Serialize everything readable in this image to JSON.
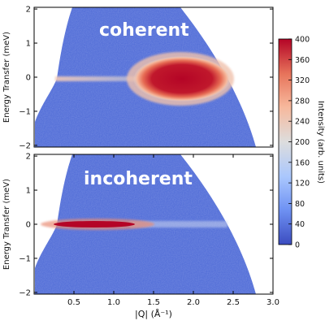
{
  "chart_data": [
    {
      "type": "heatmap",
      "panel_label": "coherent",
      "xlim": [
        0.0,
        3.0
      ],
      "ylim": [
        -2.05,
        2.05
      ],
      "ylabel": "Energy Transfer (meV)",
      "yticks": [
        "−2",
        "−1",
        "0",
        "1",
        "2"
      ],
      "xticks": [],
      "coverage_Q_range_at_E0": [
        0.32,
        2.5
      ],
      "background_intensity": 40,
      "features": [
        {
          "kind": "elastic line",
          "E": 0.0,
          "Q_range": [
            0.35,
            2.5
          ],
          "intensity": 260
        },
        {
          "kind": "quasielastic lobe",
          "Q_center": 1.9,
          "Q_width": 0.4,
          "E_halfwidth": 0.45,
          "peak_intensity": 400
        }
      ]
    },
    {
      "type": "heatmap",
      "panel_label": "incoherent",
      "xlim": [
        0.0,
        3.0
      ],
      "ylim": [
        -2.05,
        2.05
      ],
      "ylabel": "Energy Transfer (meV)",
      "xlabel": "|Q| (Å⁻¹)",
      "xticks": [
        "0.5",
        "1.0",
        "1.5",
        "2.0",
        "2.5",
        "3.0"
      ],
      "yticks": [
        "−2",
        "−1",
        "0",
        "1",
        "2"
      ],
      "coverage_Q_range_at_E0": [
        0.32,
        2.5
      ],
      "background_intensity": 40,
      "features": [
        {
          "kind": "elastic line",
          "E": 0.0,
          "Q_range": [
            0.35,
            1.45
          ],
          "peak_Q": 0.9,
          "E_halfwidth": 0.08,
          "peak_intensity": 400
        }
      ]
    }
  ],
  "colorbar": {
    "label": "Intensity (arb. units)",
    "range": [
      0,
      400
    ],
    "ticks": [
      "0",
      "40",
      "80",
      "120",
      "160",
      "200",
      "240",
      "280",
      "320",
      "360",
      "400"
    ],
    "colors": [
      "#3b4cc0",
      "#6f92f3",
      "#aac7fd",
      "#dddddd",
      "#f7b89c",
      "#e7745b",
      "#b40426"
    ]
  }
}
